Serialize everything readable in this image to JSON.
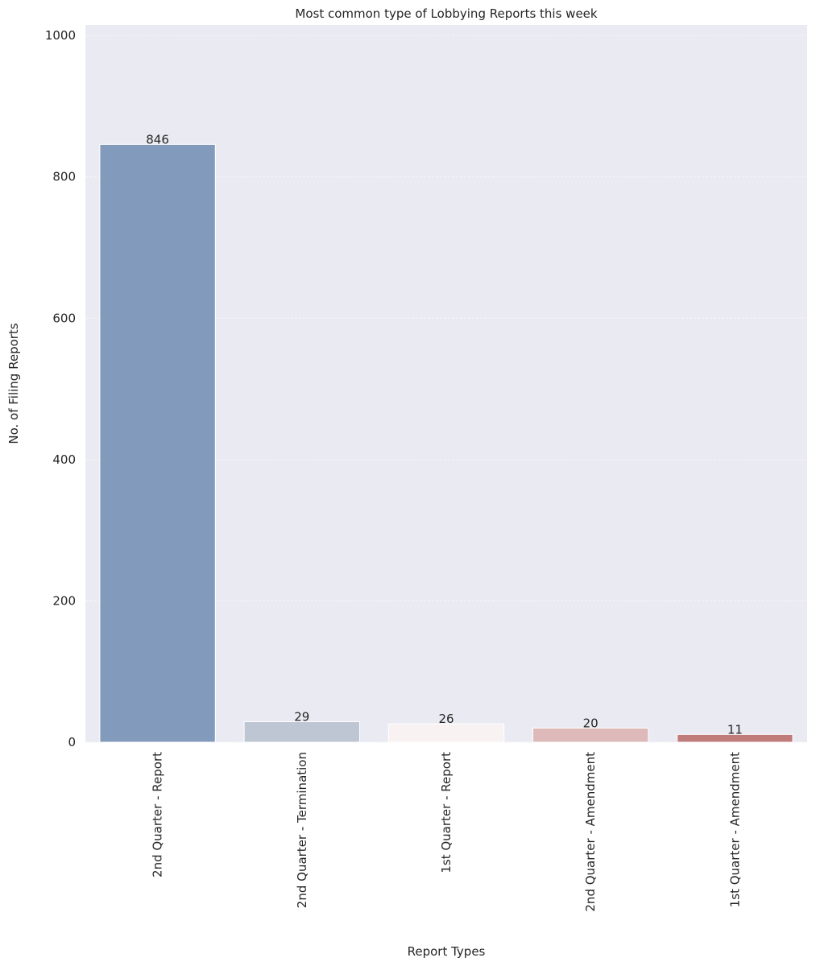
{
  "chart_data": {
    "type": "bar",
    "title": "Most common type of Lobbying Reports this week",
    "xlabel": "Report Types",
    "ylabel": "No. of Filing Reports",
    "categories": [
      "2nd Quarter - Report",
      "2nd Quarter - Termination",
      "1st Quarter - Report",
      "2nd Quarter - Amendment",
      "1st Quarter - Amendment"
    ],
    "values": [
      846,
      29,
      26,
      20,
      11
    ],
    "data_labels": [
      "846",
      "29",
      "26",
      "20",
      "11"
    ],
    "colors": [
      "#829abb",
      "#bec6d4",
      "#f8f2f3",
      "#ddbab9",
      "#c07c7b"
    ],
    "yticks": [
      0,
      200,
      400,
      600,
      800,
      1000
    ],
    "ytick_labels": [
      "0",
      "200",
      "400",
      "600",
      "800",
      "1000"
    ],
    "ylim": [
      0,
      1015
    ],
    "grid": true,
    "background": "#eaeaf2",
    "grid_color": "#f5f5fa"
  }
}
